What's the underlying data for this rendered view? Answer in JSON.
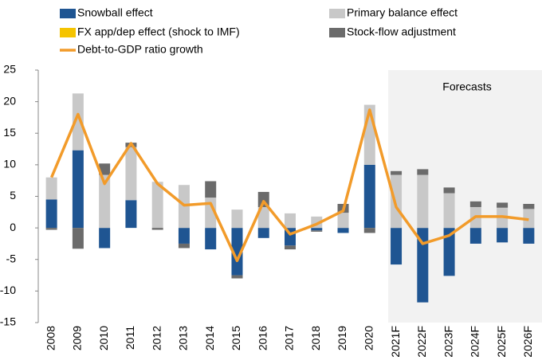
{
  "chart_data": {
    "type": "bar",
    "categories": [
      "2008",
      "2009",
      "2010",
      "2011",
      "2012",
      "2013",
      "2014",
      "2015",
      "2016",
      "2017",
      "2018",
      "2019",
      "2020",
      "2021F",
      "2022F",
      "2023F",
      "2024F",
      "2025F",
      "2026F"
    ],
    "series": [
      {
        "name": "Snowball effect",
        "color": "#1f5592",
        "values": [
          4.5,
          12.3,
          -3.2,
          4.4,
          0,
          -2.5,
          -3.4,
          -7.5,
          -1.6,
          -2.8,
          -0.4,
          -0.8,
          10,
          -5.8,
          -11.8,
          -7.6,
          -2.5,
          -2.3,
          -2.5
        ]
      },
      {
        "name": "Primary balance effect",
        "color": "#c8c8c8",
        "values": [
          3.5,
          9,
          8.4,
          8.4,
          7.3,
          6.8,
          4.8,
          2.9,
          3.3,
          2.3,
          1.8,
          2.4,
          9.5,
          8.4,
          8.4,
          5.5,
          3.3,
          3.2,
          3.0
        ]
      },
      {
        "name": "FX app/dep effect (shock to IMF)",
        "color": "#f5c400",
        "values": [
          0,
          0,
          0,
          0,
          0,
          0,
          0,
          0,
          0,
          0,
          0,
          0,
          0,
          0,
          0,
          0,
          0,
          0,
          0
        ]
      },
      {
        "name": "Stock-flow adjustment",
        "color": "#6b6b6b",
        "values": [
          -0.3,
          -3.3,
          1.8,
          0.7,
          -0.3,
          -0.7,
          2.6,
          -0.5,
          2.4,
          -0.6,
          -0.2,
          1.4,
          -0.8,
          0.6,
          0.9,
          0.9,
          0.9,
          0.8,
          0.8
        ]
      },
      {
        "name": "Debt-to-GDP ratio growth",
        "type": "line",
        "color": "#f29b2a",
        "values": [
          8,
          18,
          7,
          13.4,
          7,
          3.6,
          3.9,
          -5.2,
          4.2,
          -1.0,
          0.6,
          2.7,
          18.7,
          3.3,
          -2.5,
          -1.2,
          1.8,
          1.8,
          1.3
        ]
      }
    ],
    "annotation": "Forecasts",
    "ylim": [
      -15,
      25
    ],
    "yticks": [
      -15,
      -10,
      -5,
      0,
      5,
      10,
      15,
      20,
      25
    ]
  }
}
